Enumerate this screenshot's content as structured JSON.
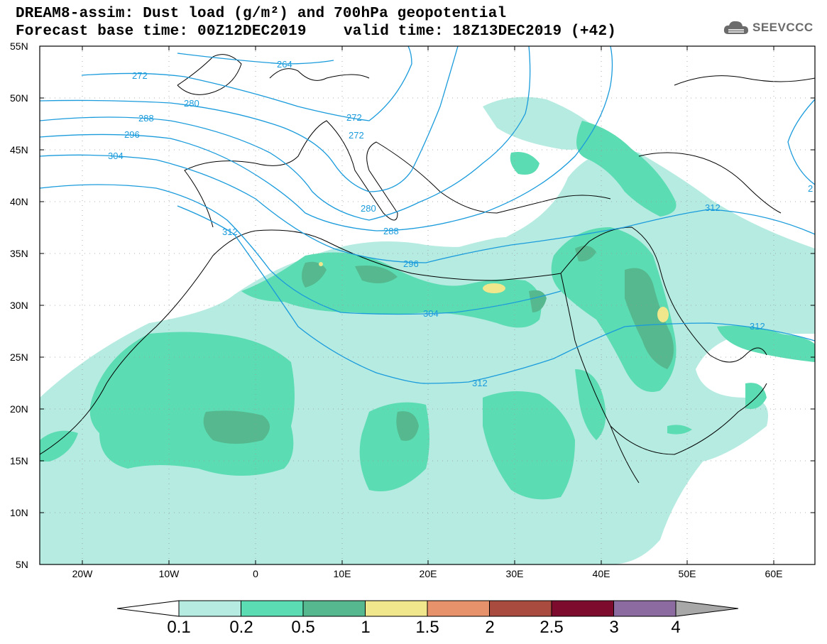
{
  "header": {
    "title_line1": "DREAM8-assim: Dust load (g/m²) and 700hPa geopotential",
    "forecast_base": "Forecast base time: 00Z12DEC2019",
    "valid_time": "valid time: 18Z13DEC2019 (+42)"
  },
  "logo": {
    "text": "SEEVCCC",
    "icon": "cloud-logo-icon"
  },
  "map": {
    "lat_labels": [
      "55N",
      "50N",
      "45N",
      "40N",
      "35N",
      "30N",
      "25N",
      "20N",
      "15N",
      "10N",
      "5N"
    ],
    "lon_labels": [
      "20W",
      "10W",
      "0",
      "10E",
      "20E",
      "30E",
      "40E",
      "50E",
      "60E"
    ],
    "contour_labels": [
      "264",
      "272",
      "272",
      "272",
      "280",
      "280",
      "288",
      "288",
      "296",
      "296",
      "304",
      "304",
      "312",
      "312",
      "312",
      "312",
      "2"
    ],
    "colors": {
      "contour": "#1a9bdc",
      "coast": "#000000"
    }
  },
  "legend": {
    "labels": [
      "0.1",
      "0.2",
      "0.5",
      "1",
      "1.5",
      "2",
      "2.5",
      "3",
      "4"
    ],
    "colors": [
      "#b5ebe1",
      "#5bdcb2",
      "#55b88e",
      "#f0e68c",
      "#e8926b",
      "#a94c3f",
      "#7d0b2e",
      "#8c6ba0",
      "#a8a8a8"
    ],
    "left_arrow_color": "#ffffff"
  }
}
